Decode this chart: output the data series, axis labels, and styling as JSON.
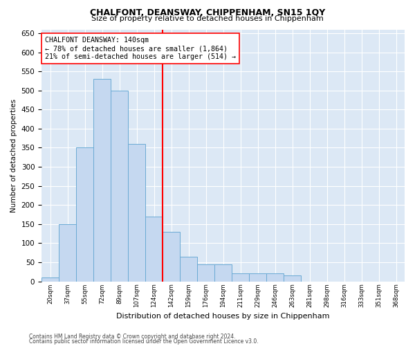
{
  "title": "CHALFONT, DEANSWAY, CHIPPENHAM, SN15 1QY",
  "subtitle": "Size of property relative to detached houses in Chippenham",
  "xlabel": "Distribution of detached houses by size in Chippenham",
  "ylabel": "Number of detached properties",
  "categories": [
    "20sqm",
    "37sqm",
    "55sqm",
    "72sqm",
    "89sqm",
    "107sqm",
    "124sqm",
    "142sqm",
    "159sqm",
    "176sqm",
    "194sqm",
    "211sqm",
    "229sqm",
    "246sqm",
    "263sqm",
    "281sqm",
    "298sqm",
    "316sqm",
    "333sqm",
    "351sqm",
    "368sqm"
  ],
  "values": [
    10,
    150,
    350,
    530,
    500,
    360,
    170,
    130,
    65,
    45,
    45,
    20,
    20,
    20,
    15,
    0,
    0,
    0,
    0,
    0,
    0
  ],
  "bar_color": "#c5d8f0",
  "bar_edge_color": "#6aaad4",
  "vline_x_index": 7,
  "vline_color": "red",
  "annotation_text": "CHALFONT DEANSWAY: 140sqm\n← 78% of detached houses are smaller (1,864)\n21% of semi-detached houses are larger (514) →",
  "annotation_box_color": "white",
  "annotation_box_edge_color": "red",
  "ylim": [
    0,
    660
  ],
  "yticks": [
    0,
    50,
    100,
    150,
    200,
    250,
    300,
    350,
    400,
    450,
    500,
    550,
    600,
    650
  ],
  "background_color": "#dce8f5",
  "footer_line1": "Contains HM Land Registry data © Crown copyright and database right 2024.",
  "footer_line2": "Contains public sector information licensed under the Open Government Licence v3.0."
}
